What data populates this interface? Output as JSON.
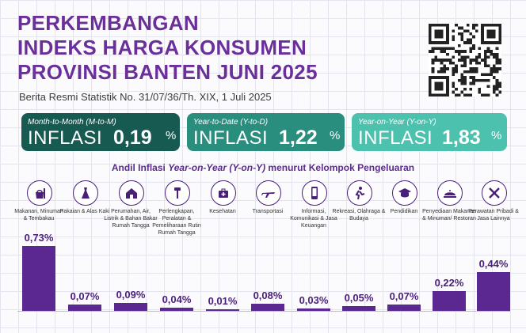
{
  "title_lines": [
    "PERKEMBANGAN",
    "INDEKS HARGA KONSUMEN",
    "PROVINSI BANTEN JUNI 2025"
  ],
  "subtitle": "Berita Resmi Statistik No. 31/07/36/Th. XIX, 1 Juli 2025",
  "cards": [
    {
      "label": "Month-to-Month (M-to-M)",
      "big": "INFLASI",
      "value": "0,19",
      "unit": "%"
    },
    {
      "label": "Year-to-Date (Y-to-D)",
      "big": "INFLASI",
      "value": "1,22",
      "unit": "%"
    },
    {
      "label": "Year-on-Year (Y-on-Y)",
      "big": "INFLASI",
      "value": "1,83",
      "unit": "%"
    }
  ],
  "section": {
    "before": "Andil Inflasi ",
    "em": "Year-on-Year (Y-on-Y)",
    "after": " menurut Kelompok Pengeluaran"
  },
  "colors": {
    "bar": "#5a2890",
    "card1": "#175a52",
    "card2": "#2a8e7f",
    "card3": "#4cc1ad",
    "title": "#6b2f9a"
  },
  "chart_data": {
    "type": "bar",
    "categories": [
      "Makanan, Minuman & Tembakau",
      "Pakaian & Alas Kaki",
      "Perumahan, Air, Listrik & Bahan Bakar Rumah Tangga",
      "Perlengkapan, Peralatan & Pemeliharaan Rutin Rumah Tangga",
      "Kesehatan",
      "Transportasi",
      "Informasi, Komunikasi & Jasa Keuangan",
      "Rekreasi, Olahraga & Budaya",
      "Pendidikan",
      "Penyediaan Makanan & Minuman/ Restoran",
      "Perawatan Pribadi & Jasa Lainnya"
    ],
    "values": [
      0.73,
      0.07,
      0.09,
      0.04,
      0.01,
      0.08,
      0.03,
      0.05,
      0.07,
      0.22,
      0.44
    ],
    "labels": [
      "0,73%",
      "0,07%",
      "0,09%",
      "0,04%",
      "0,01%",
      "0,08%",
      "0,03%",
      "0,05%",
      "0,07%",
      "0,22%",
      "0,44%"
    ],
    "icons": [
      "food-icon",
      "dress-icon",
      "house-icon",
      "tools-icon",
      "medical-bag-icon",
      "airplane-icon",
      "smartphone-icon",
      "sports-icon",
      "graduation-cap-icon",
      "restaurant-icon",
      "grooming-icon"
    ]
  }
}
